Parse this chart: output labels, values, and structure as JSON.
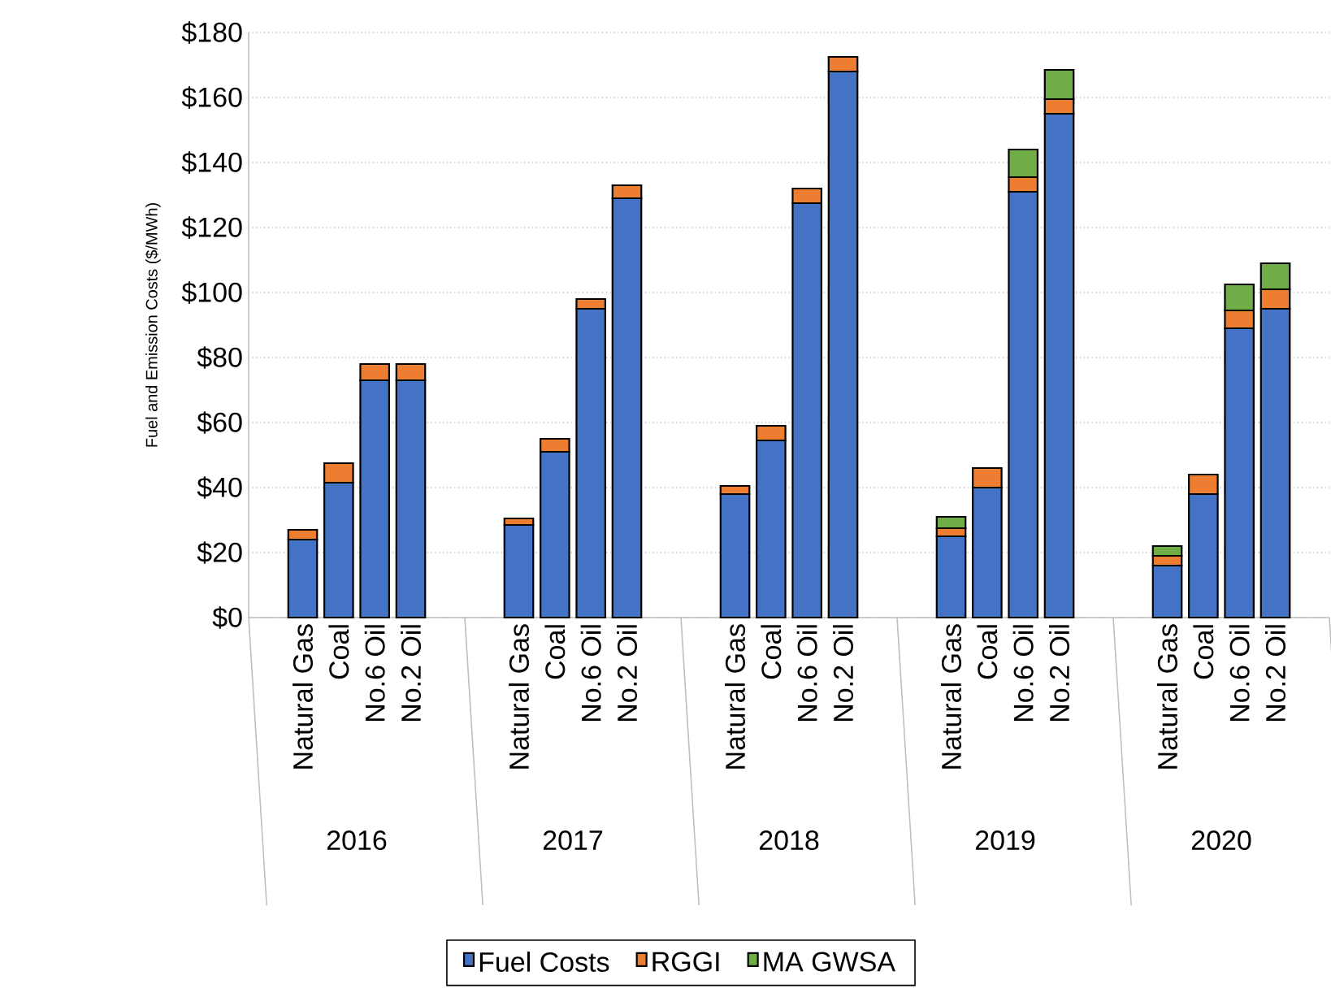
{
  "chart_data": {
    "type": "bar",
    "stacked": true,
    "ylabel": "Fuel and Emission Costs ($/MWh)",
    "categories": [
      null,
      "Natural Gas",
      "Coal",
      "No.6 Oil",
      "No.2 Oil",
      null,
      null,
      "Natural Gas",
      "Coal",
      "No.6 Oil",
      "No.2 Oil",
      null,
      null,
      "Natural Gas",
      "Coal",
      "No.6 Oil",
      "No.2 Oil",
      null,
      null,
      "Natural Gas",
      "Coal",
      "No.6 Oil",
      "No.2 Oil",
      null,
      null,
      "Natural Gas",
      "Coal",
      "No.6 Oil",
      "No.2 Oil",
      null
    ],
    "series": [
      {
        "name": "Fuel Costs",
        "color": "#4472c4",
        "values": [
          null,
          24,
          41.5,
          73,
          73,
          null,
          null,
          28.5,
          51,
          95,
          129,
          null,
          null,
          38,
          54.5,
          127.5,
          168,
          null,
          null,
          25,
          40,
          131,
          155,
          null,
          null,
          16,
          38,
          89,
          95,
          null
        ]
      },
      {
        "name": "RGGI",
        "color": "#ed7d31",
        "values": [
          null,
          3,
          6,
          5,
          5,
          null,
          null,
          2,
          4,
          3,
          4,
          null,
          null,
          2.5,
          4.5,
          4.5,
          4.5,
          null,
          null,
          2.5,
          6,
          4.5,
          4.5,
          null,
          null,
          3,
          6,
          5.5,
          6,
          null
        ]
      },
      {
        "name": "MA GWSA",
        "color": "#70ad47",
        "values": [
          null,
          0,
          0,
          0,
          0,
          null,
          null,
          0,
          0,
          0,
          0,
          null,
          null,
          0,
          0,
          0,
          0,
          null,
          null,
          3.5,
          0,
          8.5,
          9,
          null,
          null,
          3,
          0,
          8,
          8,
          null
        ]
      }
    ],
    "annotations": [
      "2016",
      "2017",
      "2018",
      "2019",
      "2020"
    ],
    "ylim": [
      0,
      180
    ],
    "yticks": [
      {
        "value": 0,
        "label": "$0"
      },
      {
        "value": 20,
        "label": "$20"
      },
      {
        "value": 40,
        "label": "$40"
      },
      {
        "value": 60,
        "label": "$60"
      },
      {
        "value": 80,
        "label": "$80"
      },
      {
        "value": 100,
        "label": "$100"
      },
      {
        "value": 120,
        "label": "$120"
      },
      {
        "value": 140,
        "label": "$140"
      },
      {
        "value": 160,
        "label": "$160"
      },
      {
        "value": 180,
        "label": "$180"
      }
    ],
    "grid": "y",
    "legend": "bottom"
  }
}
